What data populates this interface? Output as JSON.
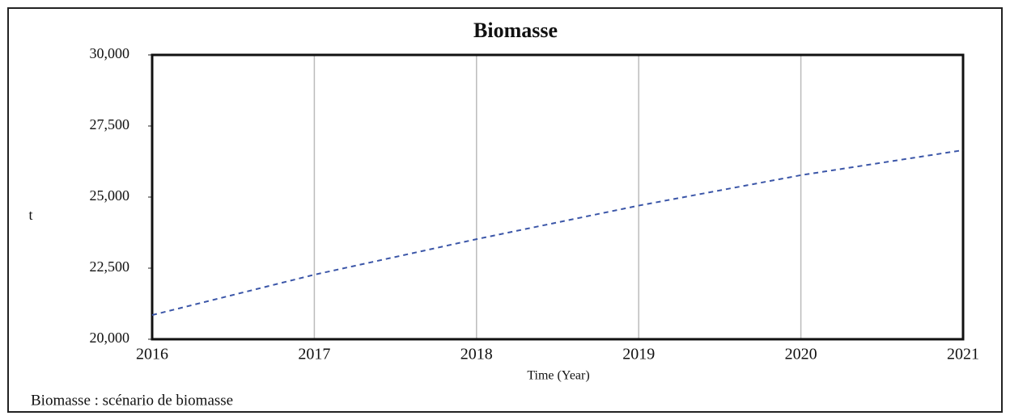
{
  "chart_data": {
    "type": "line",
    "title": "Biomasse",
    "y_label": "t",
    "x_label": "Time (Year)",
    "x": [
      2016,
      2017,
      2018,
      2019,
      2020,
      2021
    ],
    "series": [
      {
        "name": "Biomasse : scénario de biomasse",
        "color": "#3b56a8",
        "values": [
          20850,
          22270,
          23520,
          24700,
          25770,
          26650
        ]
      }
    ],
    "xlim": [
      2016,
      2021
    ],
    "xticks": [
      2016,
      2017,
      2018,
      2019,
      2020,
      2021
    ],
    "ylim": [
      20000,
      30000
    ],
    "yticks": [
      {
        "value": 20000,
        "label": "20,000"
      },
      {
        "value": 22500,
        "label": "22,500"
      },
      {
        "value": 25000,
        "label": "25,000"
      },
      {
        "value": 27500,
        "label": "27,500"
      },
      {
        "value": 30000,
        "label": "30,000"
      }
    ],
    "grid": "x",
    "legend": "bottom-left"
  }
}
